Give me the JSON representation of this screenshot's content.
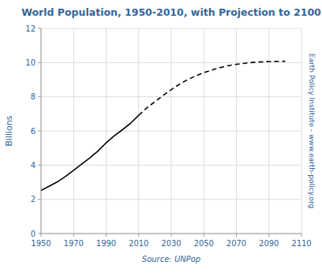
{
  "chart_data": {
    "type": "line",
    "title": "World Population, 1950-2010, with Projection to 2100",
    "y_label": "Billions",
    "annotations": [
      "Source: UNPop",
      "Earth Policy Institute - www.earth-policy.org"
    ],
    "xlim": [
      1950,
      2110
    ],
    "ylim": [
      0,
      12
    ],
    "xticks": [
      1950,
      1970,
      1990,
      2010,
      2030,
      2050,
      2070,
      2090,
      2110
    ],
    "yticks": [
      0,
      2,
      4,
      6,
      8,
      10,
      12
    ],
    "grid": true,
    "series": [
      {
        "x": [
          1950,
          1955,
          1960,
          1965,
          1970,
          1975,
          1980,
          1985,
          1990,
          1995,
          2000,
          2005,
          2010
        ],
        "values": [
          2.52,
          2.77,
          3.02,
          3.34,
          3.7,
          4.07,
          4.43,
          4.83,
          5.31,
          5.72,
          6.07,
          6.45,
          6.92
        ],
        "color": "#000000",
        "line_style": "solid"
      },
      {
        "x": [
          2010,
          2015,
          2020,
          2025,
          2030,
          2035,
          2040,
          2045,
          2050,
          2055,
          2060,
          2065,
          2070,
          2075,
          2080,
          2085,
          2090,
          2095,
          2100
        ],
        "values": [
          6.92,
          7.35,
          7.72,
          8.08,
          8.42,
          8.73,
          9.0,
          9.22,
          9.41,
          9.57,
          9.7,
          9.82,
          9.9,
          9.96,
          10.01,
          10.04,
          10.06,
          10.07,
          10.08
        ],
        "color": "#000000",
        "line_style": "dashed"
      }
    ]
  }
}
